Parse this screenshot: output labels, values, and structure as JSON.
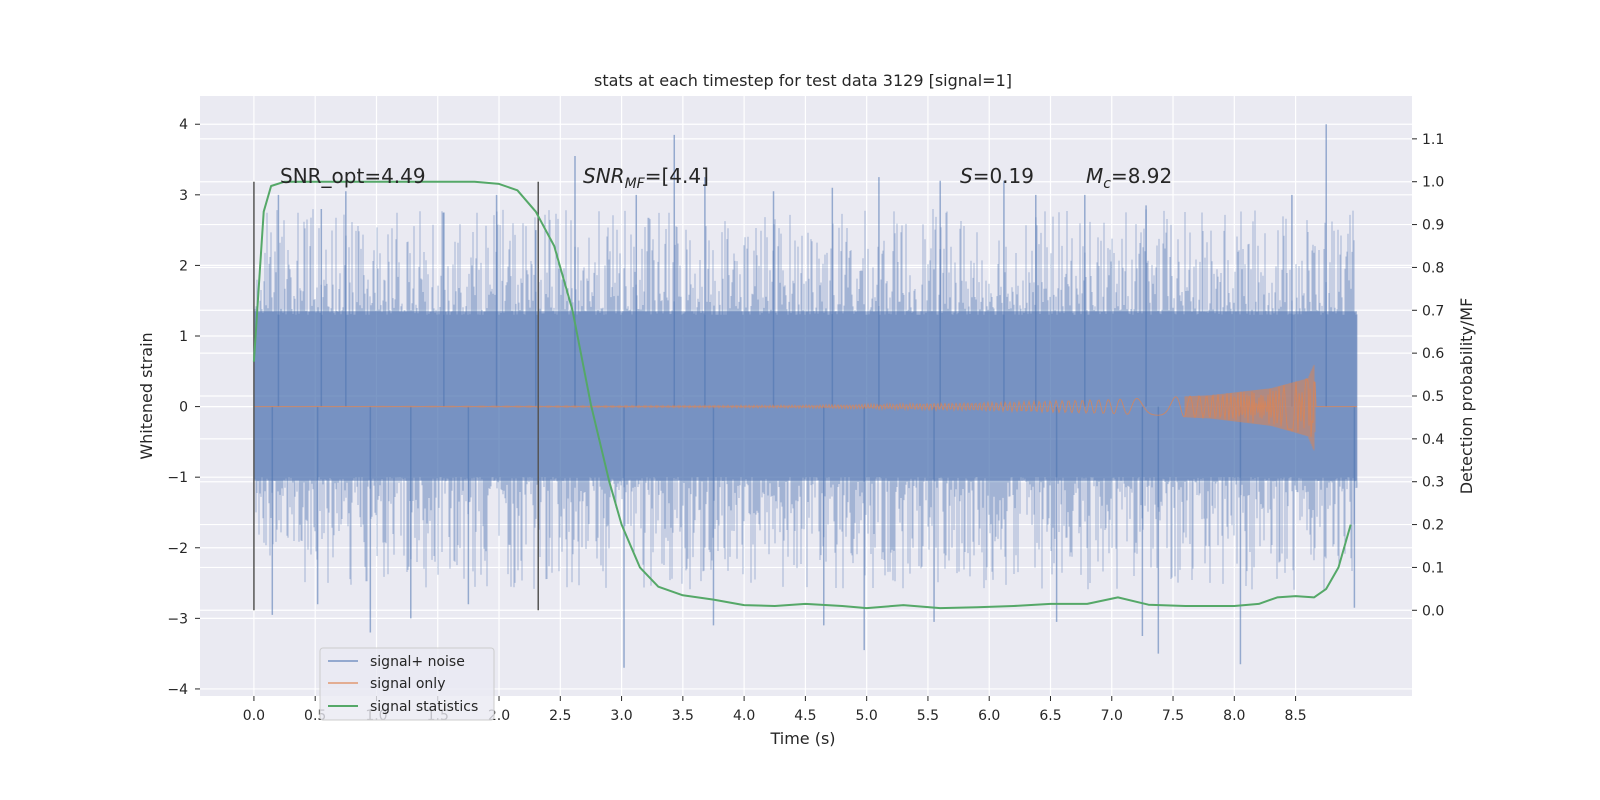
{
  "chart_data": {
    "type": "line",
    "title": "stats at each timestep for test data 3129 [signal=1]",
    "xlabel": "Time (s)",
    "ylabel": "Whitened strain",
    "y2label": "Detection probability/MF",
    "xlim": [
      -0.44,
      9.45
    ],
    "ylim": [
      -4.1,
      4.4
    ],
    "y2lim": [
      -0.2,
      1.2
    ],
    "xticks": [
      "0.0",
      "0.5",
      "1.0",
      "1.5",
      "2.0",
      "2.5",
      "3.0",
      "3.5",
      "4.0",
      "4.5",
      "5.0",
      "5.5",
      "6.0",
      "6.5",
      "7.0",
      "7.5",
      "8.0",
      "8.5"
    ],
    "yticks": [
      "4",
      "3",
      "2",
      "1",
      "0",
      "−1",
      "−2",
      "−3",
      "−4"
    ],
    "y2ticks": [
      "1.1",
      "1.0",
      "0.9",
      "0.8",
      "0.7",
      "0.6",
      "0.5",
      "0.4",
      "0.3",
      "0.2",
      "0.1",
      "0.0"
    ],
    "grid": true,
    "legend_position": "lower-left",
    "colors": {
      "background": "#eaeaf2",
      "grid": "#ffffff",
      "noise": "#4c72b0",
      "signal": "#dd8452",
      "stat": "#55a868",
      "vline": "#555555"
    },
    "noise_band": {
      "x_start": 0.0,
      "x_end": 9.0,
      "core_range": [
        -1.05,
        1.35
      ]
    },
    "vertical_lines": [
      0.0,
      2.32
    ],
    "series": [
      {
        "name": "signal+ noise",
        "note": "dense noisy strain, extremes shown",
        "values_high": [
          [
            0.2,
            3.0
          ],
          [
            0.55,
            2.8
          ],
          [
            0.75,
            3.05
          ],
          [
            1.55,
            2.75
          ],
          [
            1.98,
            3.0
          ],
          [
            2.3,
            2.5
          ],
          [
            2.62,
            3.55
          ],
          [
            3.12,
            3.0
          ],
          [
            3.43,
            3.85
          ],
          [
            3.68,
            3.25
          ],
          [
            4.24,
            3.05
          ],
          [
            4.72,
            3.1
          ],
          [
            5.1,
            3.25
          ],
          [
            5.6,
            3.2
          ],
          [
            6.12,
            3.2
          ],
          [
            6.38,
            3.0
          ],
          [
            6.78,
            3.0
          ],
          [
            7.28,
            2.85
          ],
          [
            8.47,
            3.0
          ],
          [
            8.75,
            4.0
          ]
        ],
        "values_low": [
          [
            0.15,
            -2.95
          ],
          [
            0.52,
            -2.8
          ],
          [
            0.95,
            -3.2
          ],
          [
            1.28,
            -3.0
          ],
          [
            1.75,
            -2.8
          ],
          [
            3.02,
            -3.7
          ],
          [
            3.75,
            -3.1
          ],
          [
            4.65,
            -3.1
          ],
          [
            4.98,
            -3.45
          ],
          [
            5.55,
            -3.05
          ],
          [
            6.55,
            -3.05
          ],
          [
            7.25,
            -3.25
          ],
          [
            7.38,
            -3.5
          ],
          [
            8.05,
            -3.65
          ],
          [
            8.98,
            -2.85
          ]
        ]
      },
      {
        "name": "signal only",
        "note": "chirp growing in amplitude",
        "envelope": [
          [
            0.0,
            0.0
          ],
          [
            4.5,
            0.02
          ],
          [
            6.0,
            0.06
          ],
          [
            7.0,
            0.1
          ],
          [
            7.8,
            0.16
          ],
          [
            8.3,
            0.26
          ],
          [
            8.6,
            0.4
          ],
          [
            8.65,
            0.6
          ],
          [
            8.67,
            0.0
          ],
          [
            9.0,
            0.0
          ]
        ]
      },
      {
        "name": "signal statistics",
        "axis": "right",
        "points": [
          [
            0.0,
            0.58
          ],
          [
            0.08,
            0.93
          ],
          [
            0.14,
            0.99
          ],
          [
            0.25,
            1.0
          ],
          [
            1.8,
            1.0
          ],
          [
            2.0,
            0.995
          ],
          [
            2.15,
            0.98
          ],
          [
            2.3,
            0.93
          ],
          [
            2.45,
            0.85
          ],
          [
            2.6,
            0.7
          ],
          [
            2.75,
            0.48
          ],
          [
            2.9,
            0.3
          ],
          [
            3.0,
            0.2
          ],
          [
            3.15,
            0.1
          ],
          [
            3.3,
            0.055
          ],
          [
            3.5,
            0.035
          ],
          [
            3.75,
            0.025
          ],
          [
            4.0,
            0.012
          ],
          [
            4.25,
            0.01
          ],
          [
            4.5,
            0.015
          ],
          [
            4.8,
            0.01
          ],
          [
            5.0,
            0.005
          ],
          [
            5.3,
            0.012
          ],
          [
            5.6,
            0.005
          ],
          [
            5.9,
            0.007
          ],
          [
            6.2,
            0.01
          ],
          [
            6.5,
            0.015
          ],
          [
            6.8,
            0.015
          ],
          [
            7.05,
            0.03
          ],
          [
            7.3,
            0.013
          ],
          [
            7.6,
            0.01
          ],
          [
            8.0,
            0.01
          ],
          [
            8.2,
            0.015
          ],
          [
            8.35,
            0.03
          ],
          [
            8.5,
            0.033
          ],
          [
            8.65,
            0.03
          ],
          [
            8.75,
            0.05
          ],
          [
            8.85,
            0.1
          ],
          [
            8.95,
            0.2
          ]
        ]
      }
    ],
    "annotations": {
      "snr_opt": "SNR_opt=4.49",
      "snr_mf_main": "SNR",
      "snr_mf_sub": "MF",
      "snr_mf_rest": "=[4.4]",
      "s_main": "S",
      "s_rest": "=0.19",
      "mc_main": "M",
      "mc_sub": "c",
      "mc_rest": "=8.92"
    },
    "legend": [
      "signal+ noise",
      "signal only",
      "signal statistics"
    ]
  }
}
